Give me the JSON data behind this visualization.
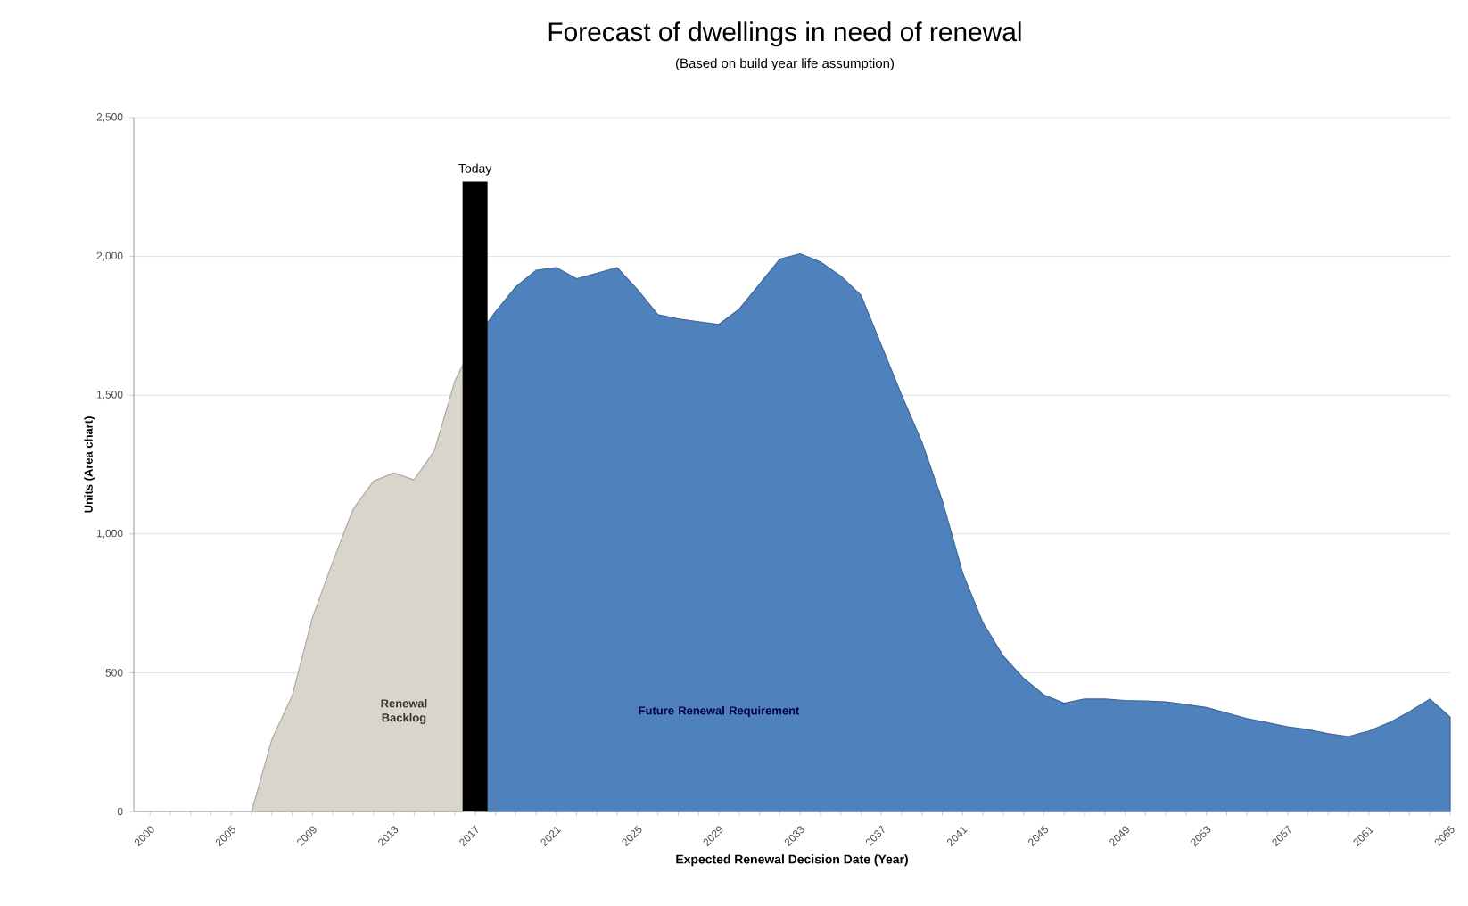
{
  "chart_data": {
    "type": "area",
    "title": "Forecast of dwellings in need of renewal",
    "subtitle": "(Based on build year life assumption)",
    "xlabel": "Expected Renewal Decision Date (Year)",
    "ylabel": "Units (Area chart)",
    "categories": [
      "2000",
      null,
      null,
      null,
      "2005",
      null,
      null,
      null,
      "2009",
      null,
      null,
      null,
      "2013",
      null,
      null,
      null,
      "2017",
      null,
      null,
      null,
      "2021",
      null,
      null,
      null,
      "2025",
      null,
      null,
      null,
      "2029",
      null,
      null,
      null,
      "2033",
      null,
      null,
      null,
      "2037",
      null,
      null,
      null,
      "2041",
      null,
      null,
      null,
      "2045",
      null,
      null,
      null,
      "2049",
      null,
      null,
      null,
      "2053",
      null,
      null,
      null,
      "2057",
      null,
      null,
      null,
      "2061",
      null,
      null,
      null,
      "2065"
    ],
    "series": [
      {
        "color": "#d9d5cc",
        "values": [
          null,
          null,
          null,
          null,
          null,
          0,
          260,
          418,
          700,
          900,
          1090,
          1190,
          1220,
          1195,
          1300,
          1550,
          1700,
          null,
          null,
          null,
          null,
          null,
          null,
          null,
          null,
          null,
          null,
          null,
          null,
          null,
          null,
          null,
          null,
          null,
          null,
          null,
          null,
          null,
          null,
          null,
          null,
          null,
          null,
          null,
          null,
          null,
          null,
          null,
          null,
          null,
          null,
          null,
          null,
          null,
          null,
          null,
          null,
          null,
          null,
          null,
          null,
          null,
          null,
          null,
          null
        ]
      },
      {
        "color": "#4f81bd",
        "values": [
          null,
          null,
          null,
          null,
          null,
          null,
          null,
          null,
          null,
          null,
          null,
          null,
          null,
          null,
          null,
          null,
          1700,
          1800,
          1890,
          1950,
          1960,
          1920,
          1940,
          1960,
          1880,
          1790,
          1775,
          1765,
          1755,
          1810,
          1900,
          1990,
          2010,
          1980,
          1930,
          1860,
          1680,
          1500,
          1330,
          1120,
          860,
          680,
          560,
          480,
          420,
          390,
          405,
          405,
          400,
          398,
          395,
          385,
          375,
          355,
          335,
          320,
          305,
          295,
          280,
          270,
          290,
          320,
          360,
          405,
          340
        ]
      }
    ],
    "ylim": [
      0,
      2500
    ],
    "yticks": [
      0,
      500,
      {
        "value": 1000,
        "label": "1,000"
      },
      {
        "value": 1500,
        "label": "1,500"
      },
      {
        "value": 2000,
        "label": "2,000"
      },
      {
        "value": 2500,
        "label": "2,500"
      }
    ],
    "grid": "y",
    "ref_lines": [
      {
        "axis": "x",
        "value": "2017",
        "label": "Today",
        "color": "#000000"
      }
    ],
    "annotations": [
      "Renewal Backlog",
      "Future Renewal Requirement"
    ]
  }
}
